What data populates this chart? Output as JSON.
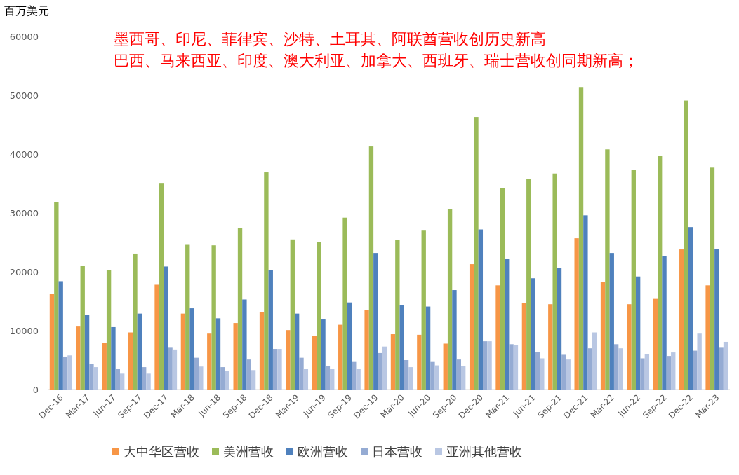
{
  "chart_data": {
    "type": "bar",
    "ylabel": "百万美元",
    "annotations": [
      "墨西哥、印尼、菲律宾、沙特、土耳其、阿联酋营收创历史新高",
      "巴西、马来西亚、印度、澳大利亚、加拿大、西班牙、瑞士营收创同期新高；"
    ],
    "categories": [
      "Dec-16",
      "Mar-17",
      "Jun-17",
      "Sep-17",
      "Dec-17",
      "Mar-18",
      "Jun-18",
      "Sep-18",
      "Dec-18",
      "Mar-19",
      "Jun-19",
      "Sep-19",
      "Dec-19",
      "Mar-20",
      "Jun-20",
      "Sep-20",
      "Dec-20",
      "Mar-21",
      "Jun-21",
      "Sep-21",
      "Dec-21",
      "Mar-22",
      "Jun-22",
      "Sep-22",
      "Dec-22",
      "Mar-23"
    ],
    "series": [
      {
        "name": "大中华区营收",
        "color": "#f79646",
        "values": [
          16200,
          10700,
          7900,
          9700,
          17800,
          12900,
          9500,
          11300,
          13100,
          10100,
          9100,
          11000,
          13500,
          9400,
          9300,
          7800,
          21300,
          17700,
          14700,
          14500,
          25700,
          18300,
          14500,
          15400,
          23800,
          17700
        ]
      },
      {
        "name": "美洲营收",
        "color": "#9bbb59",
        "values": [
          31900,
          21000,
          20300,
          23100,
          35100,
          24700,
          24500,
          27500,
          36900,
          25500,
          25000,
          29200,
          41300,
          25400,
          27000,
          30600,
          46300,
          34200,
          35800,
          36700,
          51400,
          40800,
          37300,
          39700,
          49100,
          37700
        ]
      },
      {
        "name": "欧洲营收",
        "color": "#4f81bd",
        "values": [
          18400,
          12700,
          10600,
          12900,
          20900,
          13800,
          12100,
          15300,
          20300,
          12900,
          11900,
          14800,
          23200,
          14300,
          14100,
          16900,
          27200,
          22200,
          18900,
          20700,
          29600,
          23200,
          19200,
          22700,
          27600,
          23900
        ]
      },
      {
        "name": "日本营收",
        "color": "#95abd3",
        "values": [
          5600,
          4400,
          3500,
          3800,
          7100,
          5400,
          3800,
          5100,
          6900,
          5400,
          4000,
          4800,
          6200,
          5000,
          4800,
          5100,
          8200,
          7700,
          6400,
          5900,
          7000,
          7700,
          5300,
          5700,
          6600,
          7100
        ]
      },
      {
        "name": "亚洲其他营收",
        "color": "#b9c7e3",
        "values": [
          5800,
          3800,
          2700,
          2700,
          6800,
          3900,
          3100,
          3300,
          6900,
          3500,
          3500,
          3500,
          7300,
          3800,
          4100,
          4000,
          8200,
          7500,
          5300,
          5100,
          9700,
          7000,
          6000,
          6300,
          9500,
          8100
        ]
      }
    ],
    "ylim": [
      0,
      60000
    ],
    "yticks": [
      0,
      10000,
      20000,
      30000,
      40000,
      50000,
      60000
    ],
    "legend": "bottom"
  }
}
